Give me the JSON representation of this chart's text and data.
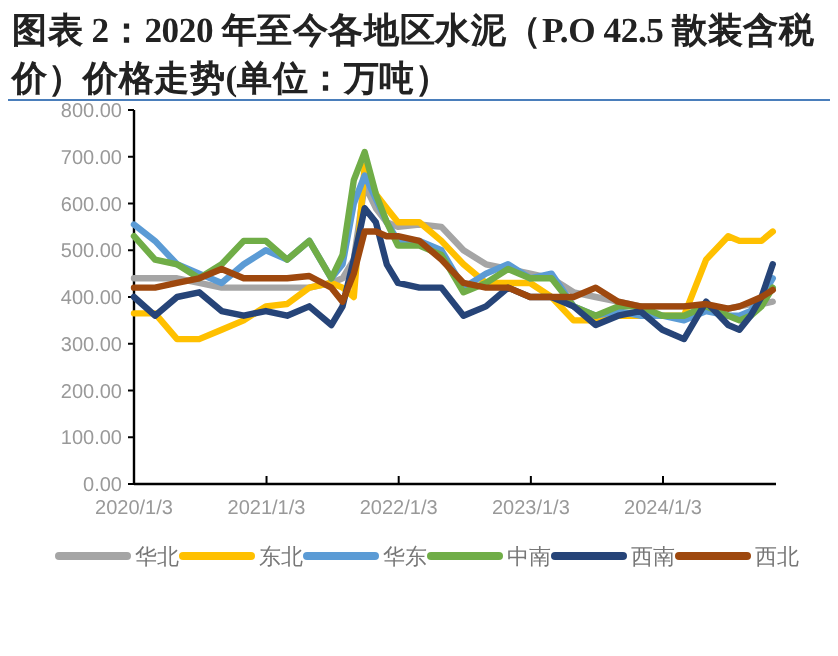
{
  "chart_data": {
    "type": "line",
    "title": "图表 2：2020 年至今各地区水泥（P.O 42.5 散装含税价）价格走势(单位：万吨）",
    "x": [
      "2020-01-03",
      "2020-03",
      "2020-05",
      "2020-07",
      "2020-09",
      "2020-11",
      "2021-01",
      "2021-03",
      "2021-05",
      "2021-07",
      "2021-08",
      "2021-09",
      "2021-10",
      "2021-11",
      "2021-12",
      "2022-01",
      "2022-03",
      "2022-05",
      "2022-07",
      "2022-09",
      "2022-11",
      "2023-01",
      "2023-03",
      "2023-05",
      "2023-07",
      "2023-09",
      "2023-11",
      "2024-01",
      "2024-03",
      "2024-05",
      "2024-07",
      "2024-08",
      "2024-09",
      "2024-10",
      "2024-11"
    ],
    "xlim": [
      "2020-01-03",
      "2024-11-10"
    ],
    "xticks": [
      {
        "value": "2020-01-03",
        "label": "2020/1/3"
      },
      {
        "value": "2021-01-03",
        "label": "2021/1/3"
      },
      {
        "value": "2022-01-03",
        "label": "2022/1/3"
      },
      {
        "value": "2023-01-03",
        "label": "2023/1/3"
      },
      {
        "value": "2024-01-03",
        "label": "2024/1/3"
      }
    ],
    "ylim": [
      0,
      800
    ],
    "yticks": [
      {
        "value": 0,
        "label": "0.00"
      },
      {
        "value": 100,
        "label": "100.00"
      },
      {
        "value": 200,
        "label": "200.00"
      },
      {
        "value": 300,
        "label": "300.00"
      },
      {
        "value": 400,
        "label": "400.00"
      },
      {
        "value": 500,
        "label": "500.00"
      },
      {
        "value": 600,
        "label": "600.00"
      },
      {
        "value": 700,
        "label": "700.00"
      },
      {
        "value": 800,
        "label": "800.00"
      }
    ],
    "legend": "bottom",
    "series": [
      {
        "name": "华北",
        "color": "#a5a5a5",
        "values": [
          440,
          440,
          440,
          430,
          420,
          420,
          420,
          420,
          420,
          430,
          440,
          480,
          640,
          590,
          560,
          550,
          555,
          550,
          500,
          470,
          460,
          450,
          440,
          410,
          400,
          390,
          380,
          380,
          380,
          380,
          375,
          380,
          385,
          385,
          390
        ]
      },
      {
        "name": "东北",
        "color": "#ffc000",
        "values": [
          365,
          365,
          310,
          310,
          330,
          350,
          380,
          385,
          420,
          430,
          420,
          400,
          680,
          620,
          590,
          560,
          560,
          520,
          470,
          430,
          430,
          430,
          400,
          350,
          350,
          360,
          360,
          360,
          360,
          480,
          530,
          520,
          520,
          520,
          540
        ]
      },
      {
        "name": "华东",
        "color": "#5b9bd5",
        "values": [
          555,
          520,
          470,
          450,
          430,
          470,
          500,
          480,
          520,
          440,
          470,
          600,
          660,
          610,
          560,
          520,
          520,
          500,
          420,
          450,
          470,
          440,
          450,
          380,
          360,
          370,
          360,
          360,
          350,
          370,
          360,
          360,
          370,
          400,
          440
        ]
      },
      {
        "name": "中南",
        "color": "#70ad47",
        "values": [
          530,
          480,
          470,
          440,
          470,
          520,
          520,
          480,
          520,
          440,
          490,
          650,
          710,
          620,
          560,
          510,
          510,
          490,
          410,
          430,
          460,
          440,
          440,
          380,
          360,
          380,
          380,
          360,
          360,
          380,
          360,
          350,
          360,
          380,
          420
        ]
      },
      {
        "name": "西南",
        "color": "#264478",
        "values": [
          400,
          360,
          400,
          410,
          370,
          360,
          370,
          360,
          380,
          340,
          380,
          480,
          590,
          560,
          470,
          430,
          420,
          420,
          360,
          380,
          420,
          400,
          400,
          380,
          340,
          360,
          370,
          330,
          310,
          390,
          340,
          330,
          360,
          400,
          470
        ]
      },
      {
        "name": "西北",
        "color": "#9e480e",
        "values": [
          420,
          420,
          430,
          440,
          460,
          440,
          440,
          440,
          445,
          420,
          390,
          450,
          540,
          540,
          530,
          530,
          520,
          480,
          430,
          420,
          420,
          400,
          400,
          400,
          420,
          390,
          380,
          380,
          380,
          385,
          375,
          380,
          390,
          400,
          415
        ]
      }
    ]
  }
}
